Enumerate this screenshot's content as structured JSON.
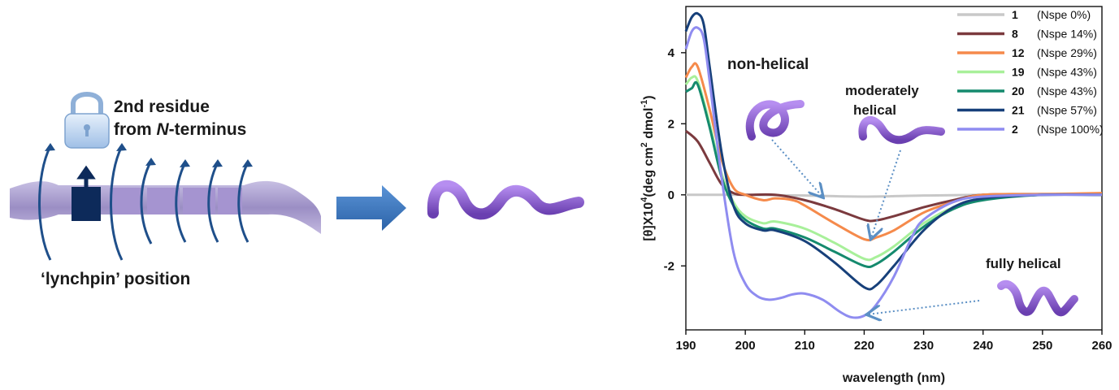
{
  "schematic": {
    "residue_label_line1": "2nd residue",
    "residue_label_line2_prefix": "from ",
    "residue_label_line2_italic": "N",
    "residue_label_line2_suffix": "-terminus",
    "position_label": "‘lynchpin’ position"
  },
  "annotations": {
    "non_helical": "non-helical",
    "moderately_line1": "moderately",
    "moderately_line2": "helical",
    "fully_helical": "fully helical"
  },
  "chart_data": {
    "type": "line",
    "xlabel": "wavelength (nm)",
    "ylabel_main": "[θ]X10",
    "ylabel_exp": "4",
    "ylabel_units": "(deg cm",
    "ylabel_units_exp": "2",
    "ylabel_units_tail": " dmol",
    "ylabel_units_tail_exp": "-1",
    "ylabel_close": ")",
    "xlim": [
      190,
      260
    ],
    "ylim": [
      -3.8,
      5.3
    ],
    "xticks": [
      190,
      200,
      210,
      220,
      230,
      240,
      250,
      260
    ],
    "yticks": [
      -2,
      0,
      2,
      4
    ],
    "ytick_labels": [
      "-2",
      "0",
      "2",
      "4"
    ],
    "legend_position": "top-right",
    "series": [
      {
        "id": "1",
        "name": "(Nspe 0%)",
        "color": "#c8c8c8",
        "x": [
          190,
          195,
          200,
          210,
          220,
          230,
          240,
          250,
          260
        ],
        "y": [
          0,
          0,
          0,
          -0.02,
          -0.05,
          -0.02,
          0,
          0,
          0
        ]
      },
      {
        "id": "8",
        "name": "(Nspe 14%)",
        "color": "#7b3a3e",
        "x": [
          190,
          192,
          194,
          196,
          198,
          200,
          205,
          210,
          215,
          220,
          222,
          225,
          230,
          235,
          240,
          250,
          260
        ],
        "y": [
          1.8,
          1.5,
          0.9,
          0.3,
          0.05,
          0,
          0,
          -0.15,
          -0.4,
          -0.7,
          -0.72,
          -0.6,
          -0.35,
          -0.15,
          0,
          0.02,
          0
        ]
      },
      {
        "id": "12",
        "name": "(Nspe 29%)",
        "color": "#f58a4b",
        "x": [
          190,
          191,
          192,
          194,
          196,
          198,
          200,
          203,
          205,
          208,
          210,
          215,
          220,
          222,
          225,
          230,
          235,
          240,
          250,
          260
        ],
        "y": [
          3.3,
          3.6,
          3.6,
          2.4,
          1.0,
          0.2,
          0,
          -0.15,
          -0.1,
          -0.15,
          -0.3,
          -0.8,
          -1.25,
          -1.2,
          -1.0,
          -0.5,
          -0.2,
          0,
          0.02,
          0.05
        ]
      },
      {
        "id": "19",
        "name": "(Nspe 43%)",
        "color": "#a8f09a",
        "x": [
          190,
          191,
          192,
          194,
          196,
          198,
          200,
          203,
          205,
          210,
          215,
          220,
          222,
          225,
          230,
          235,
          240,
          250,
          260
        ],
        "y": [
          3.1,
          3.3,
          3.2,
          2.0,
          0.6,
          -0.2,
          -0.6,
          -0.8,
          -0.75,
          -0.95,
          -1.35,
          -1.8,
          -1.75,
          -1.45,
          -0.8,
          -0.35,
          -0.1,
          0,
          0
        ]
      },
      {
        "id": "20",
        "name": "(Nspe 43%)",
        "color": "#158a6e",
        "x": [
          190,
          191,
          192,
          194,
          196,
          198,
          200,
          203,
          205,
          210,
          215,
          220,
          222,
          225,
          230,
          235,
          240,
          250,
          260
        ],
        "y": [
          2.9,
          3.0,
          3.1,
          1.9,
          0.5,
          -0.3,
          -0.7,
          -0.95,
          -0.95,
          -1.2,
          -1.6,
          -2.0,
          -1.95,
          -1.6,
          -0.9,
          -0.4,
          -0.15,
          0,
          0
        ]
      },
      {
        "id": "21",
        "name": "(Nspe 57%)",
        "color": "#17407a",
        "x": [
          190,
          191,
          192,
          193,
          194,
          196,
          198,
          200,
          203,
          205,
          210,
          215,
          220,
          222,
          225,
          230,
          235,
          240,
          250,
          260
        ],
        "y": [
          4.6,
          5.0,
          5.1,
          4.8,
          3.6,
          1.2,
          -0.3,
          -0.8,
          -1.0,
          -1.0,
          -1.3,
          -1.9,
          -2.6,
          -2.55,
          -2.0,
          -1.0,
          -0.35,
          -0.1,
          0,
          0
        ]
      },
      {
        "id": "2",
        "name": "(Nspe 100%)",
        "color": "#8f8cf0",
        "x": [
          190,
          191,
          192,
          193,
          194,
          196,
          198,
          200,
          202,
          204,
          206,
          208,
          210,
          213,
          216,
          218,
          220,
          222,
          225,
          228,
          230,
          235,
          240,
          250,
          260
        ],
        "y": [
          4.1,
          4.6,
          4.7,
          4.4,
          3.2,
          0.5,
          -1.6,
          -2.5,
          -2.85,
          -2.95,
          -2.9,
          -2.8,
          -2.78,
          -2.95,
          -3.3,
          -3.45,
          -3.4,
          -3.1,
          -2.3,
          -1.2,
          -0.7,
          -0.2,
          -0.05,
          0,
          0
        ]
      }
    ]
  },
  "colors": {
    "ribbon": "#9b8ec4",
    "lynchpin_block": "#0d2a5a",
    "arrow": "#3a78c0",
    "tube": "#8a5ec8",
    "lock": "#a9c6e8"
  }
}
